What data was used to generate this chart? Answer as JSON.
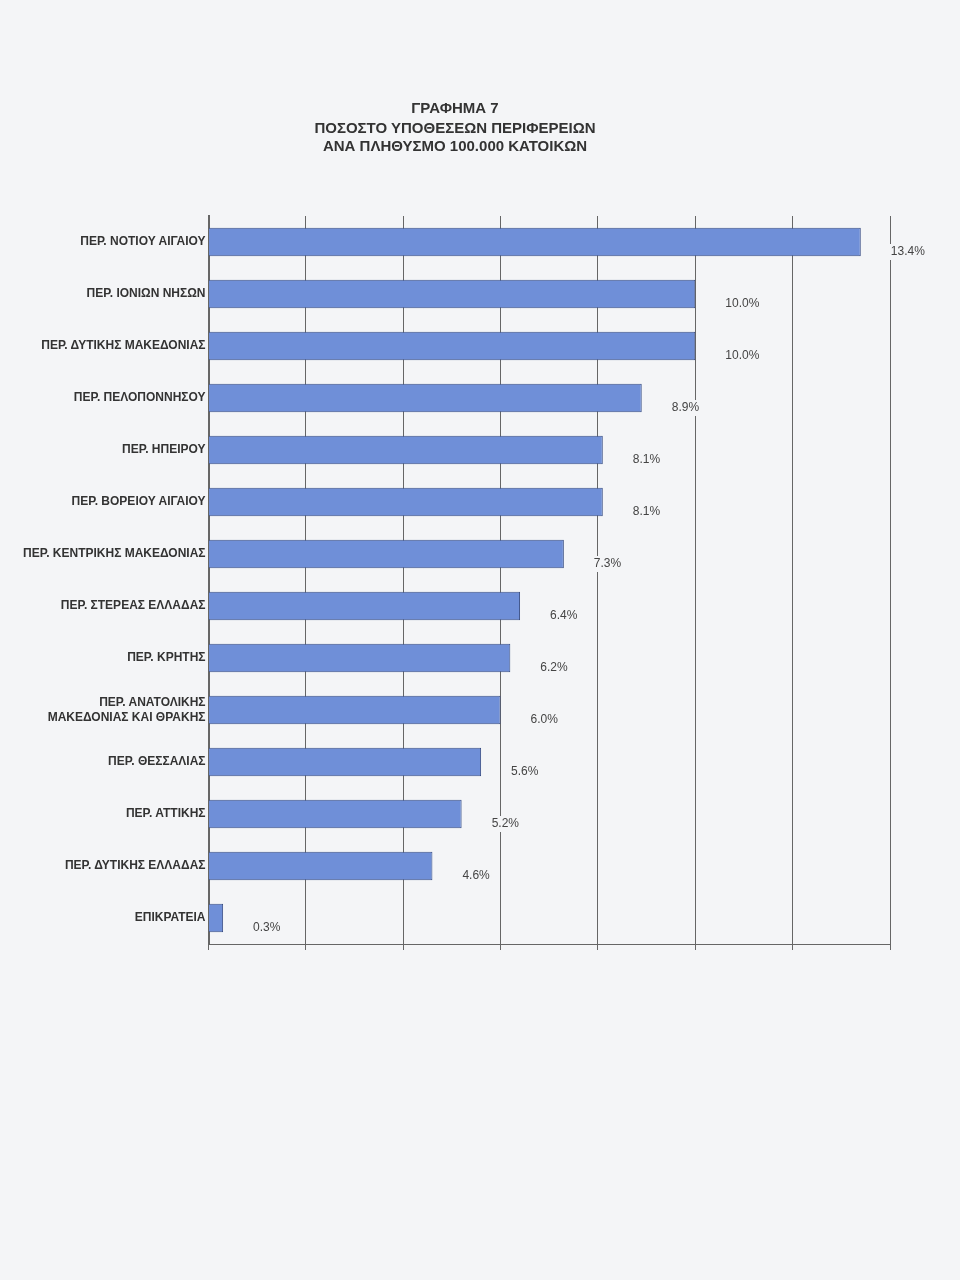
{
  "chart_data": {
    "type": "bar",
    "orientation": "horizontal",
    "title": "ΓΡΑΦΗΜΑ 7",
    "subtitle": "ΠΟΣΟΣΤΟ ΥΠΟΘΕΣΕΩΝ ΠΕΡΙΦΕΡΕΙΩΝ\nΑΝΑ ΠΛΗΘΥΣΜΟ 100.000 ΚΑΤΟΙΚΩΝ",
    "categories": [
      "ΠΕΡ. ΝΟΤΙΟΥ ΑΙΓΑΙΟΥ",
      "ΠΕΡ. ΙΟΝΙΩΝ ΝΗΣΩΝ",
      "ΠΕΡ. ΔΥΤΙΚΗΣ ΜΑΚΕΔΟΝΙΑΣ",
      "ΠΕΡ. ΠΕΛΟΠΟΝΝΗΣΟΥ",
      "ΠΕΡ. ΗΠΕΙΡΟΥ",
      "ΠΕΡ. ΒΟΡΕΙΟΥ ΑΙΓΑΙΟΥ",
      "ΠΕΡ. ΚΕΝΤΡΙΚΗΣ ΜΑΚΕΔΟΝΙΑΣ",
      "ΠΕΡ. ΣΤΕΡΕΑΣ ΕΛΛΑΔΑΣ",
      "ΠΕΡ. ΚΡΗΤΗΣ",
      "ΠΕΡ. ΑΝΑΤΟΛΙΚΗΣ ΜΑΚΕΔΟΝΙΑΣ ΚΑΙ ΘΡΑΚΗΣ",
      "ΠΕΡ. ΘΕΣΣΑΛΙΑΣ",
      "ΠΕΡ. ΑΤΤΙΚΗΣ",
      "ΠΕΡ. ΔΥΤΙΚΗΣ ΕΛΛΑΔΑΣ",
      "ΕΠΙΚΡΑΤΕΙΑ"
    ],
    "values": [
      13.4,
      10.0,
      10.0,
      8.9,
      8.1,
      8.1,
      7.3,
      6.4,
      6.2,
      6.0,
      5.6,
      5.2,
      4.6,
      0.3
    ],
    "value_labels": [
      "13.4%",
      "10.0%",
      "10.0%",
      "8.9%",
      "8.1%",
      "8.1%",
      "7.3%",
      "6.4%",
      "6.2%",
      "6.0%",
      "5.6%",
      "5.2%",
      "4.6%",
      "0.3%"
    ],
    "color": "#6f8fd8",
    "xlim": [
      0,
      14
    ],
    "xticks": [
      {
        "value": 0,
        "label": null
      },
      {
        "value": 2,
        "label": null
      },
      {
        "value": 4,
        "label": null
      },
      {
        "value": 6,
        "label": null
      },
      {
        "value": 8,
        "label": null
      },
      {
        "value": 10,
        "label": null
      },
      {
        "value": 12,
        "label": null
      },
      {
        "value": 14,
        "label": null
      }
    ],
    "grid": "x",
    "tick_labels": "y",
    "legend": false
  }
}
